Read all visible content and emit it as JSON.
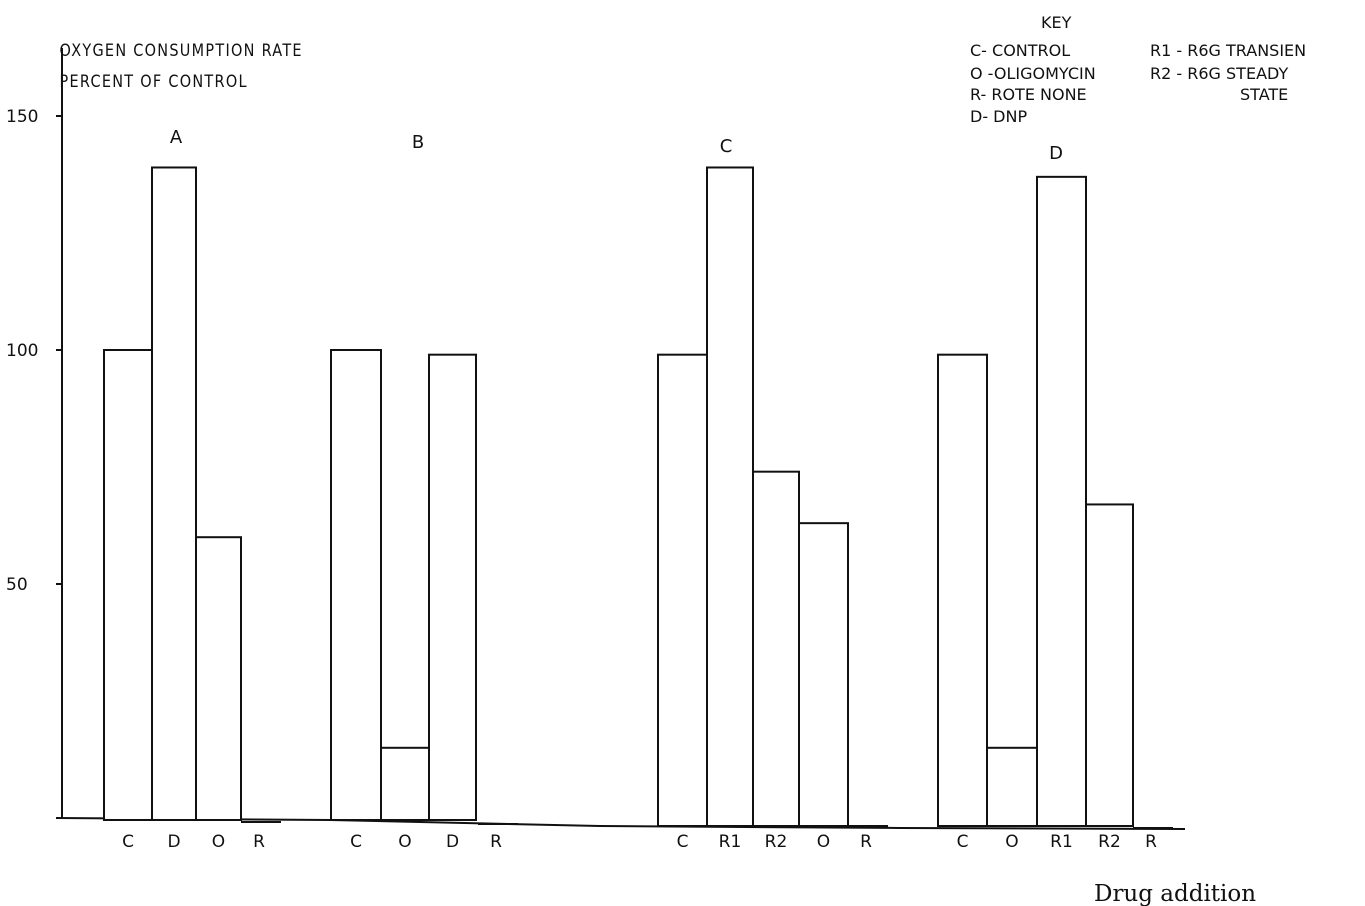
{
  "chart_data": {
    "type": "bar",
    "ylabel": [
      "OXYGEN  CONSUMPTION  RATE",
      "PERCENT  OF  CONTROL"
    ],
    "xlabel": "Drug addition",
    "yticks": [
      150,
      100,
      50
    ],
    "ylim": [
      0,
      150
    ],
    "grid": false,
    "legend": {
      "title": "KEY",
      "placement": "top-right",
      "entries": [
        "C- CONTROL",
        "O -OLIGOMYCIN",
        "R- ROTE NONE",
        "D- DNP",
        "R1 - R6G TRANSIEN",
        "R2 - R6G STEADY",
        "STATE"
      ]
    },
    "groups": [
      {
        "label": "A",
        "categories": [
          "C",
          "D",
          "O",
          "R"
        ],
        "values": [
          100,
          139,
          60,
          0
        ]
      },
      {
        "label": "B",
        "categories": [
          "C",
          "O",
          "D",
          "R"
        ],
        "values": [
          100,
          15,
          99,
          0
        ]
      },
      {
        "label": "C",
        "categories": [
          "C",
          "R1",
          "R2",
          "O",
          "R"
        ],
        "values": [
          99,
          139,
          74,
          63,
          0
        ]
      },
      {
        "label": "D",
        "categories": [
          "C",
          "O",
          "R1",
          "R2",
          "R"
        ],
        "values": [
          99,
          15,
          137,
          67,
          0
        ]
      }
    ]
  }
}
